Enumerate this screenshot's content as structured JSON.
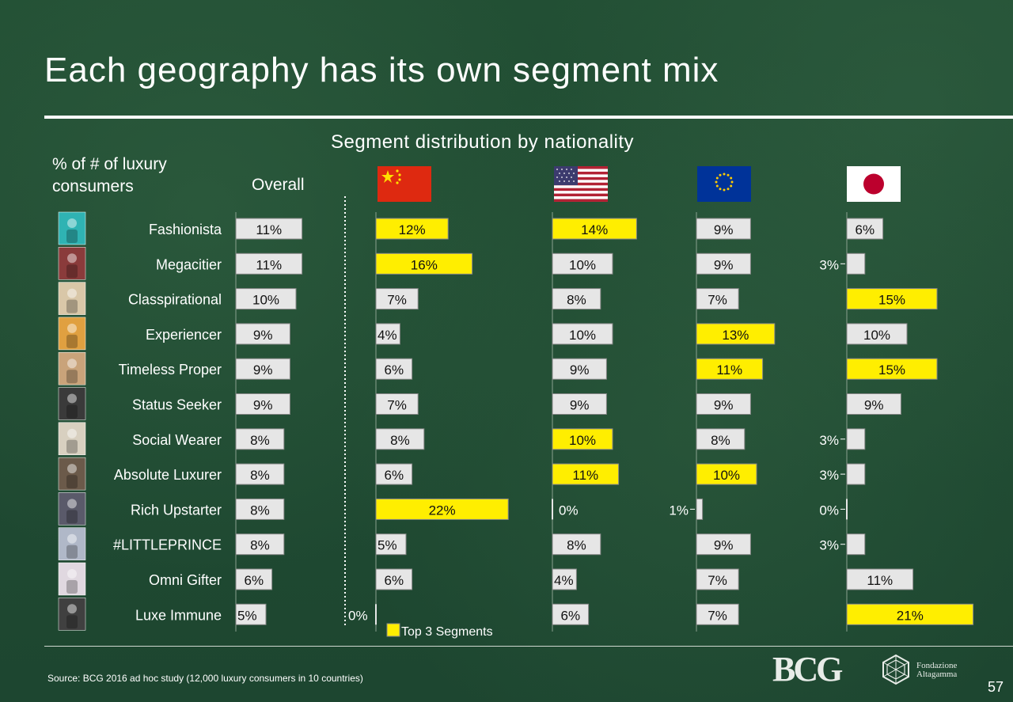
{
  "title": "Each geography has its own segment mix",
  "subtitle": "Segment distribution by nationality",
  "y_axis_label": "% of # of luxury consumers",
  "overall_label": "Overall",
  "legend": {
    "label": "Top 3 Segments",
    "color": "#ffee00"
  },
  "source": "Source: BCG 2016 ad hoc study (12,000 luxury consumers in 10 countries)",
  "page_number": "57",
  "logos": {
    "bcg": "BCG",
    "altagamma_line1": "Fondazione",
    "altagamma_line2": "Altagamma"
  },
  "flags": [
    "china-flag-icon",
    "usa-flag-icon",
    "eu-flag-icon",
    "japan-flag-icon"
  ],
  "colors": {
    "background": "#1f4a30",
    "highlight_bar": "#ffee00",
    "normal_bar": "#e6e6e6"
  },
  "chart_data": {
    "type": "bar",
    "orientation": "horizontal",
    "title": "Segment distribution by nationality",
    "categories": [
      "Fashionista",
      "Megacitier",
      "Classpirational",
      "Experiencer",
      "Timeless Proper",
      "Status Seeker",
      "Social Wearer",
      "Absolute Luxurer",
      "Rich Upstarter",
      "#LITTLEPRINCE",
      "Omni Gifter",
      "Luxe Immune"
    ],
    "series": [
      {
        "name": "Overall",
        "values": [
          11,
          11,
          10,
          9,
          9,
          9,
          8,
          8,
          8,
          8,
          6,
          5
        ],
        "top3": []
      },
      {
        "name": "China",
        "values": [
          12,
          16,
          7,
          4,
          6,
          7,
          8,
          6,
          22,
          5,
          6,
          0
        ],
        "top3": [
          0,
          1,
          8
        ]
      },
      {
        "name": "USA",
        "values": [
          14,
          10,
          8,
          10,
          9,
          9,
          10,
          11,
          0,
          8,
          4,
          6
        ],
        "top3": [
          0,
          6,
          7
        ]
      },
      {
        "name": "EU",
        "values": [
          9,
          9,
          7,
          13,
          11,
          9,
          8,
          10,
          1,
          9,
          7,
          7
        ],
        "top3": [
          3,
          4,
          7
        ]
      },
      {
        "name": "Japan",
        "values": [
          6,
          3,
          15,
          10,
          15,
          9,
          3,
          3,
          0,
          3,
          11,
          21
        ],
        "top3": [
          2,
          4,
          11
        ]
      }
    ],
    "unit": "%"
  }
}
